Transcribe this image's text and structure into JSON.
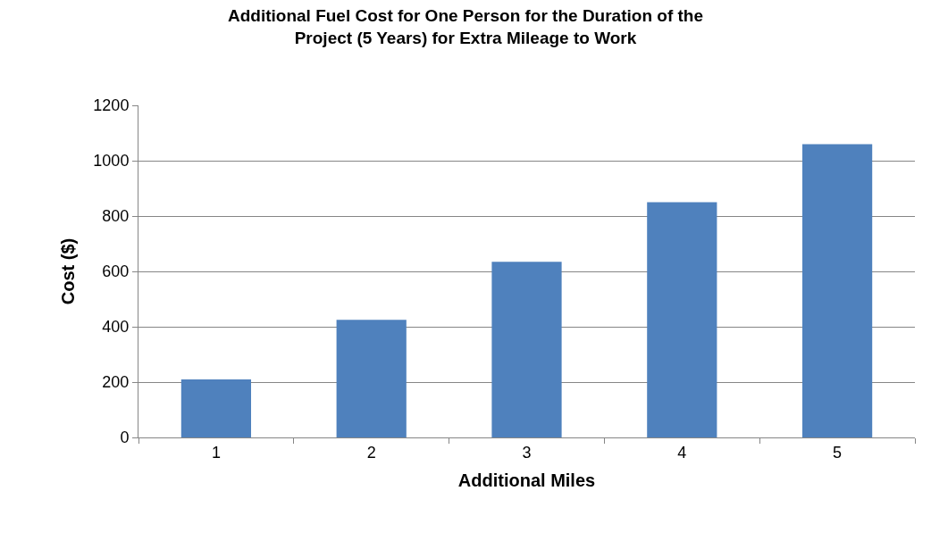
{
  "chart_data": {
    "type": "bar",
    "title": "Additional Fuel Cost for One Person for the Duration of the Project (5 Years) for Extra Mileage to Work",
    "xlabel": "Additional Miles",
    "ylabel": "Cost ($)",
    "categories": [
      "1",
      "2",
      "3",
      "4",
      "5"
    ],
    "values": [
      210,
      425,
      635,
      850,
      1060
    ],
    "color": "#4f81bd",
    "ylim": [
      0,
      1200
    ],
    "yticks": [
      0,
      200,
      400,
      600,
      800,
      1000,
      1200
    ],
    "grid": "y",
    "legend": false
  }
}
